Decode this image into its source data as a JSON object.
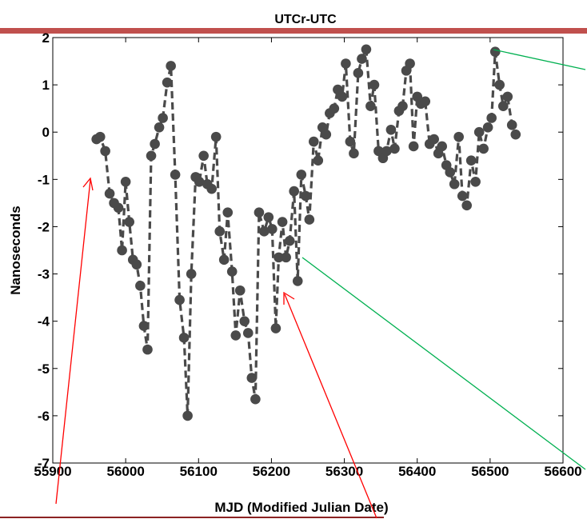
{
  "chart_data": {
    "type": "line",
    "title": "UTCr-UTC",
    "xlabel": "MJD (Modified Julian Date)",
    "ylabel": "Nanoseconds",
    "xlim": [
      55900,
      56600
    ],
    "ylim": [
      -7,
      2
    ],
    "xticks": [
      "55900",
      "56000",
      "56100",
      "56200",
      "56300",
      "56400",
      "56500",
      "56600"
    ],
    "yticks": [
      "-7",
      "-6",
      "-5",
      "-4",
      "-3",
      "-2",
      "-1",
      "0",
      "1",
      "2"
    ],
    "grid": false,
    "series": [
      {
        "line_style": "dashed",
        "marker": "circle",
        "color": "#4a4a4a",
        "x": [
          55960,
          55965,
          55972,
          55978,
          55984,
          55990,
          55995,
          56000,
          56005,
          56010,
          56015,
          56020,
          56025,
          56030,
          56035,
          56040,
          56046,
          56051,
          56057,
          56062,
          56068,
          56074,
          56080,
          56085,
          56090,
          56096,
          56101,
          56107,
          56112,
          56118,
          56124,
          56129,
          56135,
          56140,
          56146,
          56151,
          56157,
          56163,
          56168,
          56173,
          56178,
          56183,
          56190,
          56196,
          56201,
          56206,
          56210,
          56215,
          56220,
          56225,
          56231,
          56236,
          56241,
          56247,
          56252,
          56258,
          56264,
          56270,
          56275,
          56280,
          56286,
          56291,
          56297,
          56302,
          56308,
          56313,
          56319,
          56324,
          56330,
          56336,
          56341,
          56347,
          56353,
          56358,
          56364,
          56369,
          56375,
          56380,
          56385,
          56390,
          56395,
          56400,
          56405,
          56411,
          56417,
          56423,
          56429,
          56434,
          56440,
          56445,
          56451,
          56457,
          56462,
          56468,
          56474,
          56480,
          56485,
          56491,
          56497,
          56502,
          56507,
          56513,
          56518,
          56524,
          56530,
          56535
        ],
        "y": [
          -0.15,
          -0.1,
          -0.4,
          -1.3,
          -1.5,
          -1.6,
          -2.5,
          -1.05,
          -1.9,
          -2.7,
          -2.8,
          -3.25,
          -4.1,
          -4.6,
          -0.5,
          -0.25,
          0.1,
          0.3,
          1.05,
          1.4,
          -0.9,
          -3.55,
          -4.35,
          -6.0,
          -3.0,
          -0.95,
          -1.05,
          -0.5,
          -1.1,
          -1.2,
          -0.1,
          -2.1,
          -2.7,
          -1.7,
          -2.95,
          -4.3,
          -3.35,
          -4.0,
          -4.25,
          -5.2,
          -5.65,
          -1.7,
          -2.1,
          -1.8,
          -2.05,
          -4.15,
          -2.65,
          -1.9,
          -2.65,
          -2.3,
          -1.25,
          -3.15,
          -0.9,
          -1.35,
          -1.85,
          -0.2,
          -0.6,
          0.1,
          -0.05,
          0.4,
          0.5,
          0.9,
          0.75,
          1.45,
          -0.2,
          -0.45,
          1.25,
          1.55,
          1.75,
          0.55,
          1.0,
          -0.4,
          -0.55,
          -0.4,
          0.05,
          -0.35,
          0.45,
          0.55,
          1.3,
          1.45,
          -0.3,
          0.75,
          0.6,
          0.65,
          -0.25,
          -0.15,
          -0.45,
          -0.3,
          -0.7,
          -0.85,
          -1.1,
          -0.1,
          -1.35,
          -1.55,
          -0.6,
          -1.05,
          0.0,
          -0.35,
          0.1,
          0.3,
          1.7,
          1.0,
          0.55,
          0.75,
          0.15,
          -0.05
        ]
      }
    ]
  },
  "annotations": {
    "red_color": "#ff0000",
    "green_color": "#00b050",
    "bar_color": "#c0504d"
  }
}
